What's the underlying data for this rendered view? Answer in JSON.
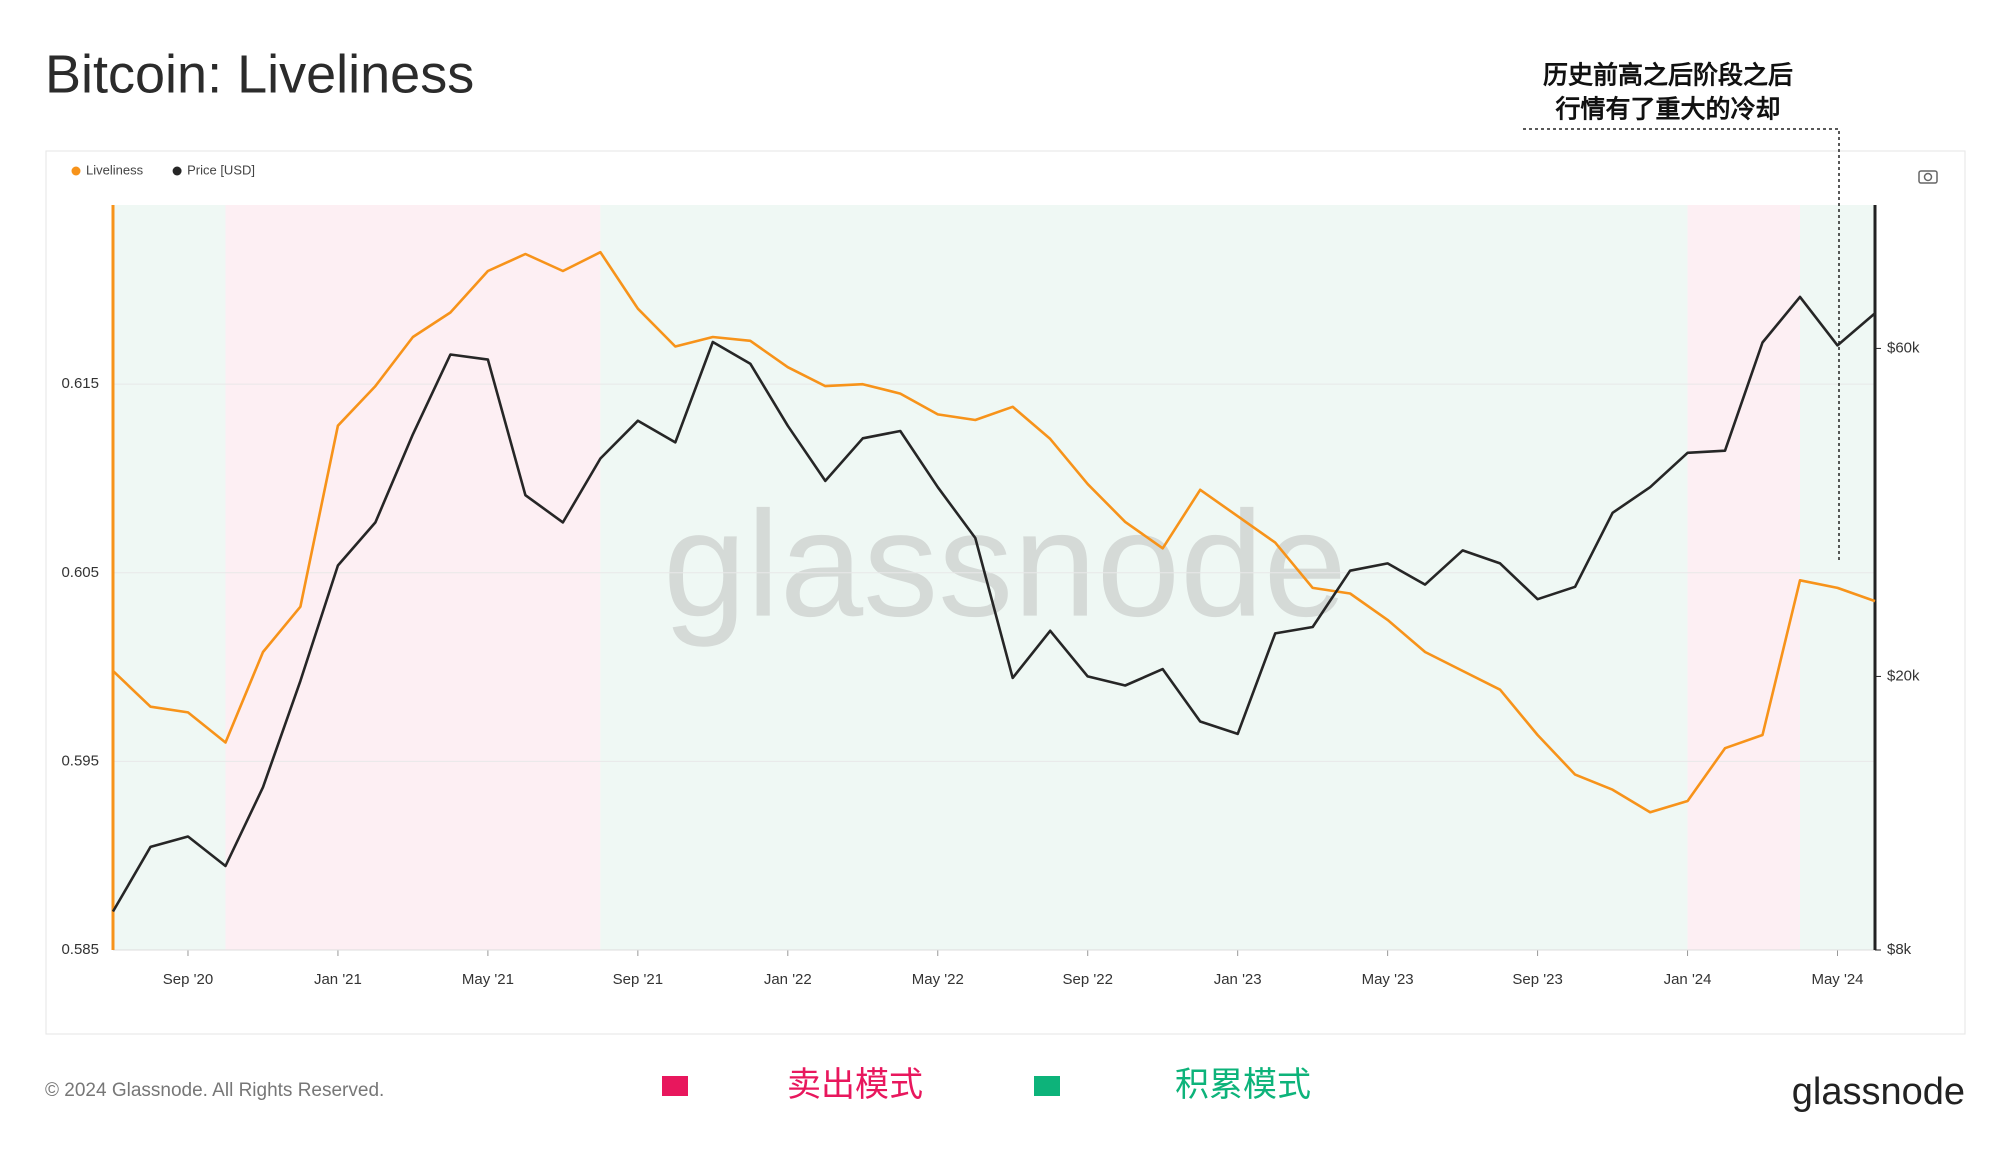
{
  "chart_data": {
    "type": "line",
    "title": "Bitcoin: Liveliness",
    "annotation": [
      "历史前高之后阶段之后",
      "行情有了重大的冷却"
    ],
    "copyright": "© 2024 Glassnode. All Rights Reserved.",
    "brand": "glassnode",
    "x": [
      "2020-07",
      "2020-08",
      "2020-09",
      "2020-10",
      "2020-11",
      "2020-12",
      "2021-01",
      "2021-02",
      "2021-03",
      "2021-04",
      "2021-05",
      "2021-06",
      "2021-07",
      "2021-08",
      "2021-09",
      "2021-10",
      "2021-11",
      "2021-12",
      "2022-01",
      "2022-02",
      "2022-03",
      "2022-04",
      "2022-05",
      "2022-06",
      "2022-07",
      "2022-08",
      "2022-09",
      "2022-10",
      "2022-11",
      "2022-12",
      "2023-01",
      "2023-02",
      "2023-03",
      "2023-04",
      "2023-05",
      "2023-06",
      "2023-07",
      "2023-08",
      "2023-09",
      "2023-10",
      "2023-11",
      "2023-12",
      "2024-01",
      "2024-02",
      "2024-03",
      "2024-04",
      "2024-05",
      "2024-06"
    ],
    "xlim": [
      "2020-07",
      "2024-06"
    ],
    "xticks": [
      {
        "value": "2020-09",
        "label": "Sep '20"
      },
      {
        "value": "2021-01",
        "label": "Jan '21"
      },
      {
        "value": "2021-05",
        "label": "May '21"
      },
      {
        "value": "2021-09",
        "label": "Sep '21"
      },
      {
        "value": "2022-01",
        "label": "Jan '22"
      },
      {
        "value": "2022-05",
        "label": "May '22"
      },
      {
        "value": "2022-09",
        "label": "Sep '22"
      },
      {
        "value": "2023-01",
        "label": "Jan '23"
      },
      {
        "value": "2023-05",
        "label": "May '23"
      },
      {
        "value": "2023-09",
        "label": "Sep '23"
      },
      {
        "value": "2024-01",
        "label": "Jan '24"
      },
      {
        "value": "2024-05",
        "label": "May '24"
      }
    ],
    "ylim": [
      0.585,
      0.6245
    ],
    "yticks": [
      0.585,
      0.595,
      0.605,
      0.615
    ],
    "y2lim": [
      8000,
      97000
    ],
    "y2scale": "log",
    "y2ticks": [
      {
        "value": 8000,
        "label": "$8k"
      },
      {
        "value": 20000,
        "label": "$20k"
      },
      {
        "value": 60000,
        "label": "$60k"
      }
    ],
    "grid": true,
    "series": [
      {
        "name": "Liveliness",
        "color": "#f7931a",
        "values": [
          0.5998,
          0.5979,
          0.5976,
          0.596,
          0.6008,
          0.6032,
          0.6128,
          0.6149,
          0.6175,
          0.6188,
          0.621,
          0.6219,
          0.621,
          0.622,
          0.619,
          0.617,
          0.6175,
          0.6173,
          0.6159,
          0.6149,
          0.615,
          0.6145,
          0.6134,
          0.6131,
          0.6138,
          0.6121,
          0.6097,
          0.6077,
          0.6063,
          0.6094,
          0.608,
          0.6066,
          0.6042,
          0.6039,
          0.6025,
          0.6008,
          0.5998,
          0.5988,
          0.5964,
          0.5943,
          0.5935,
          0.5923,
          0.5929,
          0.5957,
          0.5964,
          0.6046,
          0.6042,
          0.6035
        ]
      },
      {
        "name": "Price [USD]",
        "color": "#262626",
        "axis": "y2",
        "values": [
          9100,
          11300,
          11700,
          10600,
          13800,
          19700,
          29000,
          33500,
          45000,
          58800,
          57800,
          36700,
          33500,
          41500,
          47100,
          43800,
          61300,
          57000,
          46300,
          38500,
          44400,
          45500,
          37700,
          31800,
          19900,
          23300,
          20000,
          19400,
          20500,
          17200,
          16500,
          23100,
          23600,
          28500,
          29200,
          27200,
          30500,
          29200,
          25900,
          27000,
          34600,
          37700,
          42300,
          42600,
          61200,
          71300,
          60600,
          67500
        ]
      }
    ],
    "bands": [
      {
        "start": "2020-07",
        "end": "2020-10",
        "color": "#eff8f4"
      },
      {
        "start": "2020-10",
        "end": "2021-08",
        "color": "#fdeff3"
      },
      {
        "start": "2021-08",
        "end": "2024-01",
        "color": "#eff8f4"
      },
      {
        "start": "2024-01",
        "end": "2024-04",
        "color": "#fdeff3"
      },
      {
        "start": "2024-04",
        "end": "2024-06",
        "color": "#eff8f4"
      }
    ],
    "band_legend": [
      {
        "label": "卖出模式",
        "color": "#e8175d"
      },
      {
        "label": "积累模式",
        "color": "#0db37a"
      }
    ]
  }
}
